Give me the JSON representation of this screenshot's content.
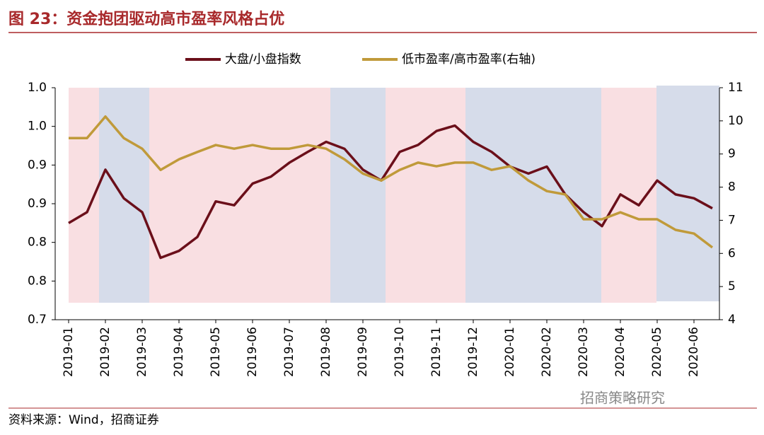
{
  "header": {
    "title": "图 23：资金抱团驱动高市盈率风格占优"
  },
  "chart_data": {
    "type": "line",
    "categories": [
      "2019-01",
      null,
      "2019-02",
      null,
      "2019-03",
      null,
      "2019-04",
      null,
      "2019-05",
      null,
      "2019-06",
      null,
      "2019-07",
      null,
      "2019-08",
      null,
      "2019-09",
      null,
      "2019-10",
      null,
      "2019-11",
      null,
      "2019-12",
      null,
      "2020-01",
      null,
      "2020-02",
      null,
      "2020-03",
      null,
      "2020-04",
      null,
      "2020-05",
      null,
      "2020-06",
      null
    ],
    "series": [
      {
        "name": "大盘/小盘指数",
        "color": "#6b0f1a",
        "axis": "y",
        "values": [
          0.825,
          0.839,
          0.894,
          0.857,
          0.839,
          0.78,
          0.789,
          0.807,
          0.853,
          0.848,
          0.876,
          0.885,
          0.903,
          0.917,
          0.93,
          0.921,
          0.894,
          0.88,
          0.917,
          0.926,
          0.944,
          0.951,
          0.93,
          0.917,
          0.898,
          0.889,
          0.898,
          0.862,
          0.839,
          0.821,
          0.862,
          0.848,
          0.88,
          0.862,
          0.857,
          0.844
        ]
      },
      {
        "name": "低市盈率/高市盈率(右轴)",
        "color": "#c09a3a",
        "axis": "y2",
        "values": [
          9.48,
          9.48,
          10.13,
          9.48,
          9.16,
          8.52,
          8.84,
          9.06,
          9.27,
          9.16,
          9.27,
          9.16,
          9.16,
          9.27,
          9.16,
          8.84,
          8.41,
          8.2,
          8.52,
          8.74,
          8.63,
          8.74,
          8.74,
          8.52,
          8.63,
          8.2,
          7.88,
          7.78,
          7.03,
          7.03,
          7.24,
          7.03,
          7.03,
          6.71,
          6.6,
          6.18
        ]
      }
    ],
    "ylim": [
      0.7,
      1.0
    ],
    "yticks": [
      {
        "value": 0.7,
        "label": "0.7"
      },
      {
        "value": 0.75,
        "label": "0.8"
      },
      {
        "value": 0.8,
        "label": "0.8"
      },
      {
        "value": 0.85,
        "label": "0.9"
      },
      {
        "value": 0.9,
        "label": "0.9"
      },
      {
        "value": 0.95,
        "label": "1.0"
      },
      {
        "value": 1.0,
        "label": "1.0"
      }
    ],
    "y2lim": [
      4,
      11
    ],
    "y2ticks": [
      4,
      5,
      6,
      7,
      8,
      9,
      10,
      11
    ],
    "legend": "top"
  },
  "footer": {
    "source": "资料来源：Wind，招商证券",
    "watermark": "招商策略研究"
  }
}
